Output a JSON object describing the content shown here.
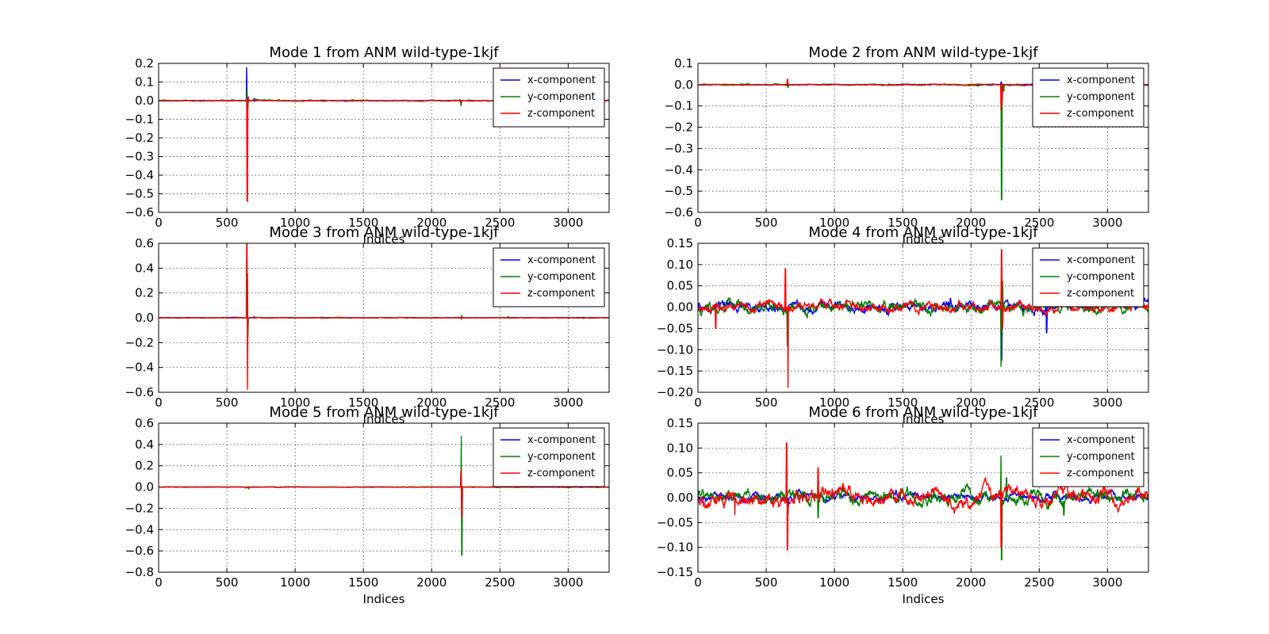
{
  "chart_data": [
    {
      "type": "line",
      "title": "Mode 1 from ANM wild-type-1kjf",
      "xlabel": "Indices",
      "ylabel": "",
      "xlim": [
        0,
        3300
      ],
      "ylim": [
        -0.6,
        0.2
      ],
      "xticks": [
        "0",
        "500",
        "1000",
        "1500",
        "2000",
        "2500",
        "3000"
      ],
      "yticks": [
        "0.2",
        "0.1",
        "0.0",
        "−0.1",
        "−0.2",
        "−0.3",
        "−0.4",
        "−0.5",
        "−0.6"
      ],
      "grid": true,
      "legend_position": "top-right",
      "series": [
        {
          "name": "x-component",
          "color": "#0000ff",
          "noise": 0.002,
          "events": [
            [
              645,
              0.18
            ],
            [
              700,
              0.012
            ],
            [
              2210,
              0.005
            ]
          ]
        },
        {
          "name": "y-component",
          "color": "#008000",
          "noise": 0.003,
          "events": [
            [
              648,
              0.06
            ],
            [
              652,
              -0.04
            ],
            [
              2215,
              -0.025
            ],
            [
              880,
              0.006
            ]
          ]
        },
        {
          "name": "z-component",
          "color": "#ff0000",
          "noise": 0.002,
          "events": [
            [
              650,
              -0.54
            ],
            [
              655,
              0.02
            ],
            [
              2212,
              -0.01
            ]
          ]
        }
      ]
    },
    {
      "type": "line",
      "title": "Mode 2 from ANM wild-type-1kjf",
      "xlabel": "Indices",
      "ylabel": "",
      "xlim": [
        0,
        3300
      ],
      "ylim": [
        -0.6,
        0.1
      ],
      "xticks": [
        "0",
        "500",
        "1000",
        "1500",
        "2000",
        "2500",
        "3000"
      ],
      "yticks": [
        "0.1",
        "0.0",
        "−0.1",
        "−0.2",
        "−0.3",
        "−0.4",
        "−0.5",
        "−0.6"
      ],
      "grid": true,
      "legend_position": "top-right",
      "series": [
        {
          "name": "x-component",
          "color": "#0000ff",
          "noise": 0.002,
          "events": [
            [
              2222,
              0.012
            ],
            [
              2235,
              -0.02
            ],
            [
              660,
              0.005
            ]
          ]
        },
        {
          "name": "y-component",
          "color": "#008000",
          "noise": 0.003,
          "events": [
            [
              2225,
              -0.54
            ],
            [
              660,
              -0.015
            ],
            [
              2240,
              -0.03
            ]
          ]
        },
        {
          "name": "z-component",
          "color": "#ff0000",
          "noise": 0.002,
          "events": [
            [
              655,
              0.025
            ],
            [
              2220,
              -0.12
            ],
            [
              2228,
              -0.08
            ]
          ]
        }
      ]
    },
    {
      "type": "line",
      "title": "Mode 3 from ANM wild-type-1kjf",
      "xlabel": "Indices",
      "ylabel": "",
      "xlim": [
        0,
        3300
      ],
      "ylim": [
        -0.6,
        0.6
      ],
      "xticks": [
        "0",
        "500",
        "1000",
        "1500",
        "2000",
        "2500",
        "3000"
      ],
      "yticks": [
        "0.6",
        "0.4",
        "0.2",
        "0.0",
        "−0.2",
        "−0.4",
        "−0.6"
      ],
      "grid": true,
      "legend_position": "top-right",
      "series": [
        {
          "name": "x-component",
          "color": "#0000ff",
          "noise": 0.002,
          "events": [
            [
              648,
              0.2
            ],
            [
              652,
              -0.1
            ],
            [
              700,
              0.01
            ]
          ]
        },
        {
          "name": "y-component",
          "color": "#008000",
          "noise": 0.002,
          "events": [
            [
              650,
              0.35
            ],
            [
              654,
              -0.15
            ],
            [
              2220,
              0.02
            ],
            [
              2560,
              0.01
            ]
          ]
        },
        {
          "name": "z-component",
          "color": "#ff0000",
          "noise": 0.002,
          "events": [
            [
              646,
              0.6
            ],
            [
              651,
              -0.58
            ],
            [
              2218,
              -0.01
            ]
          ]
        }
      ]
    },
    {
      "type": "line",
      "title": "Mode 4 from ANM wild-type-1kjf",
      "xlabel": "Indices",
      "ylabel": "",
      "xlim": [
        0,
        3300
      ],
      "ylim": [
        -0.2,
        0.15
      ],
      "xticks": [
        "0",
        "500",
        "1000",
        "1500",
        "2000",
        "2500",
        "3000"
      ],
      "yticks": [
        "0.15",
        "0.10",
        "0.05",
        "0.00",
        "−0.05",
        "−0.10",
        "−0.15",
        "−0.20"
      ],
      "grid": true,
      "legend_position": "top-right",
      "series": [
        {
          "name": "x-component",
          "color": "#0000ff",
          "noise": 0.012,
          "events": [
            [
              2225,
              -0.125
            ],
            [
              2555,
              -0.06
            ],
            [
              660,
              -0.04
            ],
            [
              1850,
              0.02
            ]
          ]
        },
        {
          "name": "y-component",
          "color": "#008000",
          "noise": 0.014,
          "events": [
            [
              2220,
              -0.14
            ],
            [
              2230,
              0.06
            ],
            [
              655,
              -0.09
            ],
            [
              1200,
              0.015
            ]
          ]
        },
        {
          "name": "z-component",
          "color": "#ff0000",
          "noise": 0.012,
          "events": [
            [
              130,
              -0.05
            ],
            [
              640,
              0.09
            ],
            [
              660,
              -0.19
            ],
            [
              2225,
              0.135
            ],
            [
              2230,
              -0.05
            ]
          ]
        }
      ]
    },
    {
      "type": "line",
      "title": "Mode 5 from ANM wild-type-1kjf",
      "xlabel": "Indices",
      "ylabel": "",
      "xlim": [
        0,
        3300
      ],
      "ylim": [
        -0.8,
        0.6
      ],
      "xticks": [
        "0",
        "500",
        "1000",
        "1500",
        "2000",
        "2500",
        "3000"
      ],
      "yticks": [
        "0.6",
        "0.4",
        "0.2",
        "0.0",
        "−0.2",
        "−0.4",
        "−0.6",
        "−0.8"
      ],
      "grid": true,
      "legend_position": "top-right",
      "series": [
        {
          "name": "x-component",
          "color": "#0000ff",
          "noise": 0.002,
          "events": [
            [
              2215,
              0.1
            ],
            [
              2220,
              -0.1
            ]
          ]
        },
        {
          "name": "y-component",
          "color": "#008000",
          "noise": 0.003,
          "events": [
            [
              2218,
              0.48
            ],
            [
              2222,
              -0.64
            ],
            [
              660,
              -0.02
            ]
          ]
        },
        {
          "name": "z-component",
          "color": "#ff0000",
          "noise": 0.002,
          "events": [
            [
              2216,
              0.15
            ],
            [
              2221,
              -0.28
            ],
            [
              640,
              -0.01
            ]
          ]
        }
      ]
    },
    {
      "type": "line",
      "title": "Mode 6 from ANM wild-type-1kjf",
      "xlabel": "Indices",
      "ylabel": "",
      "xlim": [
        0,
        3300
      ],
      "ylim": [
        -0.15,
        0.15
      ],
      "xticks": [
        "0",
        "500",
        "1000",
        "1500",
        "2000",
        "2500",
        "3000"
      ],
      "yticks": [
        "0.15",
        "0.10",
        "0.05",
        "0.00",
        "−0.05",
        "−0.10",
        "−0.15"
      ],
      "grid": true,
      "legend_position": "top-right",
      "series": [
        {
          "name": "x-component",
          "color": "#0000ff",
          "noise": 0.008,
          "events": [
            [
              660,
              -0.035
            ],
            [
              1450,
              0.015
            ]
          ]
        },
        {
          "name": "y-component",
          "color": "#008000",
          "noise": 0.014,
          "events": [
            [
              2220,
              0.085
            ],
            [
              2225,
              -0.125
            ],
            [
              2260,
              0.04
            ],
            [
              2680,
              -0.035
            ],
            [
              880,
              -0.04
            ]
          ]
        },
        {
          "name": "z-component",
          "color": "#ff0000",
          "noise": 0.016,
          "events": [
            [
              650,
              0.11
            ],
            [
              655,
              -0.105
            ],
            [
              880,
              0.06
            ],
            [
              2222,
              -0.1
            ],
            [
              270,
              -0.035
            ]
          ]
        }
      ]
    }
  ]
}
